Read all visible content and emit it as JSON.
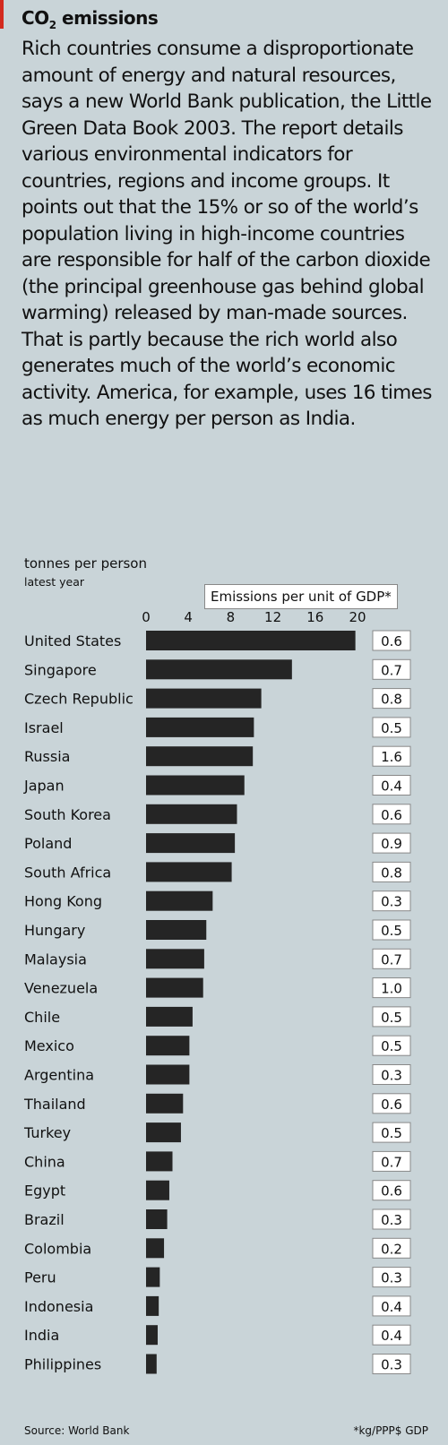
{
  "title": {
    "main": "CO",
    "sub": "2",
    "rest": " emissions"
  },
  "body": "Rich countries consume a disproportionate amount of energy and natural resources, says a new World Bank publication, the Little Green Data Book 2003. The report details various environmental indicators for countries, regions and income groups. It points out that the 15% or so of the world’s population living in high-income countries are responsible for half of the carbon dioxide (the principal greenhouse gas behind global warming) released by man-made sources. That is partly because the rich world also generates much of the world’s economic activity. America, for example, uses 16 times as much energy per person as India.",
  "unit_line1": "tonnes per person",
  "unit_line2": "latest year",
  "gdp_header": "Emissions per unit of GDP*",
  "source": "Source: World Bank",
  "footnote": "*kg/PPP$ GDP",
  "colors": {
    "bar": "#252525",
    "background": "#c9d4d8",
    "accent": "#d32a1e"
  },
  "chart_data": {
    "type": "bar",
    "orientation": "horizontal",
    "xlim": [
      0,
      20
    ],
    "xticks": [
      0,
      4,
      8,
      12,
      16,
      20
    ],
    "categories": [
      "United States",
      "Singapore",
      "Czech Republic",
      "Israel",
      "Russia",
      "Japan",
      "South Korea",
      "Poland",
      "South Africa",
      "Hong Kong",
      "Hungary",
      "Malaysia",
      "Venezuela",
      "Chile",
      "Mexico",
      "Argentina",
      "Thailand",
      "Turkey",
      "China",
      "Egypt",
      "Brazil",
      "Colombia",
      "Peru",
      "Indonesia",
      "India",
      "Philippines"
    ],
    "values": [
      19.8,
      13.8,
      10.9,
      10.2,
      10.1,
      9.3,
      8.6,
      8.4,
      8.1,
      6.3,
      5.7,
      5.5,
      5.4,
      4.4,
      4.1,
      4.1,
      3.5,
      3.3,
      2.5,
      2.2,
      2.0,
      1.7,
      1.3,
      1.2,
      1.1,
      1.0
    ],
    "secondary_label": "Emissions per unit of GDP*",
    "secondary_values": [
      "0.6",
      "0.7",
      "0.8",
      "0.5",
      "1.6",
      "0.4",
      "0.6",
      "0.9",
      "0.8",
      "0.3",
      "0.5",
      "0.7",
      "1.0",
      "0.5",
      "0.5",
      "0.3",
      "0.6",
      "0.5",
      "0.7",
      "0.6",
      "0.3",
      "0.2",
      "0.3",
      "0.4",
      "0.4",
      "0.3"
    ]
  }
}
